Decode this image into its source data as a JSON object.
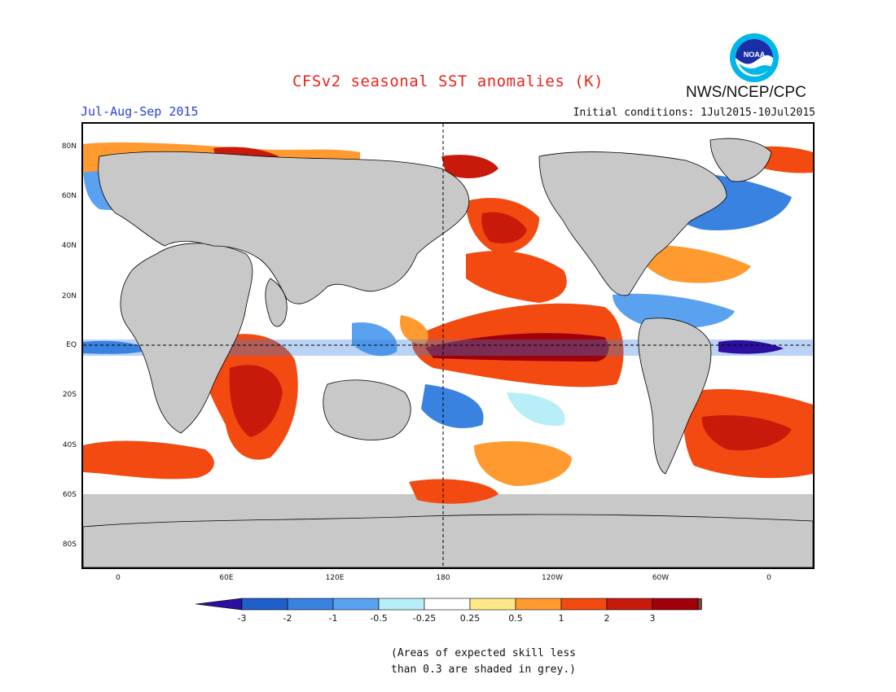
{
  "header": {
    "title": "CFSv2 seasonal SST anomalies (K)",
    "season": "Jul-Aug-Sep 2015",
    "initial_conditions": "Initial conditions: 1Jul2015-10Jul2015",
    "agency": "NWS/NCEP/CPC",
    "logo_text": "NOAA"
  },
  "map": {
    "lat_labels": [
      "80N",
      "60N",
      "40N",
      "20N",
      "EQ",
      "20S",
      "40S",
      "60S",
      "80S"
    ],
    "lon_labels": [
      "0",
      "60E",
      "120E",
      "180",
      "120W",
      "60W",
      "0"
    ]
  },
  "colorbar": {
    "labels": [
      "-3",
      "-2",
      "-1",
      "-0.5",
      "-0.25",
      "0.25",
      "0.5",
      "1",
      "2",
      "3"
    ],
    "colors": [
      "#2c0f9e",
      "#1f5fc8",
      "#3a82e0",
      "#5aa2ef",
      "#b8eef8",
      "#ffffff",
      "#ffe88a",
      "#ff9a30",
      "#f24a10",
      "#c81a0a",
      "#a0000a",
      "#6b4a3a"
    ]
  },
  "note": {
    "line1": "(Areas of expected skill less",
    "line2": "than 0.3 are shaded in grey.)"
  },
  "colors": {
    "title": "#e8251f",
    "season": "#2b3fd6",
    "land": "#c8c8c8",
    "skill_grey": "#c8c8c8"
  }
}
